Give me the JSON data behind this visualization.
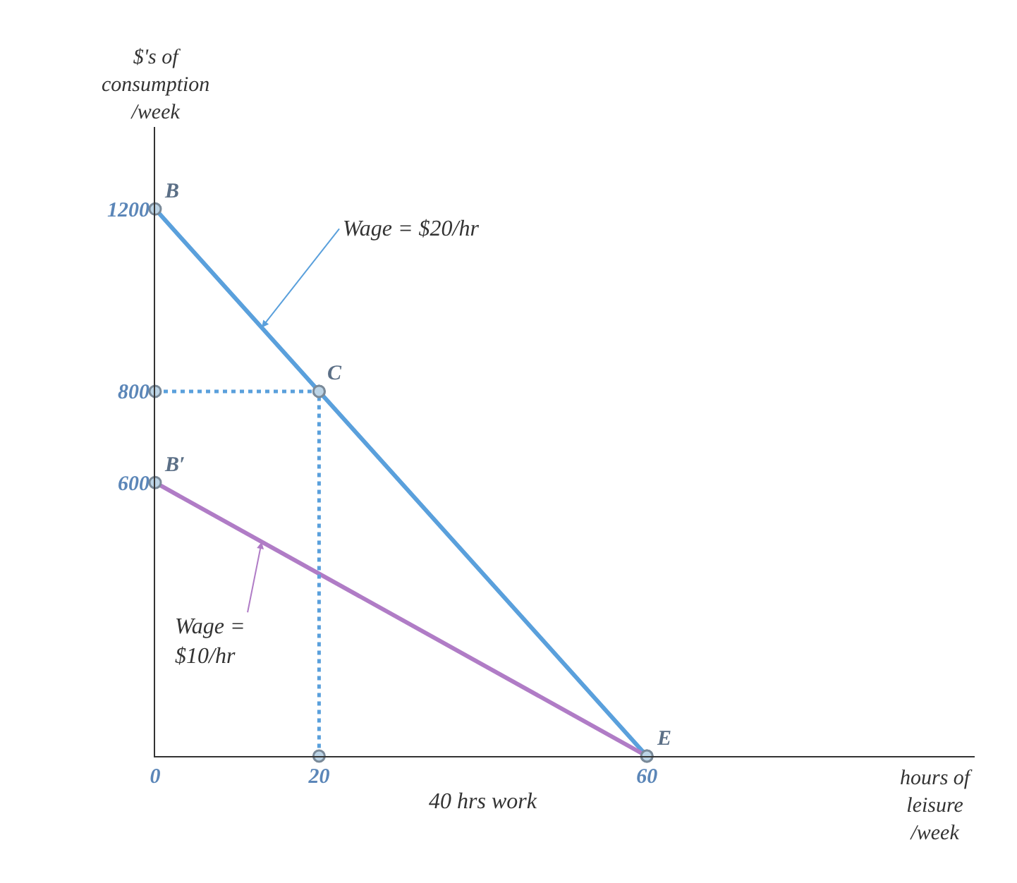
{
  "chart_data": {
    "type": "line",
    "xlabel": "hours of\nleisure\n/week",
    "ylabel": "$'s of\nconsumption\n/week",
    "x": [
      0,
      20,
      60
    ],
    "series": [
      {
        "color": "#5aa0dc",
        "values": [
          1200,
          800,
          0
        ]
      },
      {
        "color": "#b07cc6",
        "x": [
          0,
          60
        ],
        "values": [
          600,
          0
        ]
      },
      {
        "color": "#5aa0dc",
        "x": [
          0,
          20,
          20
        ],
        "values": [
          800,
          800,
          0
        ],
        "line_style": "dotted"
      }
    ],
    "annotations": [
      {
        "text": "B",
        "x": 0,
        "y": 1200
      },
      {
        "text": "C",
        "x": 20,
        "y": 800
      },
      {
        "text": "B′",
        "x": 0,
        "y": 600
      },
      {
        "text": "E",
        "x": 60,
        "y": 0
      },
      {
        "text": "Wage = $20/hr",
        "x": 13,
        "y": 940
      },
      {
        "text": "Wage =\n$10/hr",
        "x": 13,
        "y": 470
      },
      "40 hrs work"
    ],
    "marker": "circle",
    "line_style": "solid",
    "xlim": [
      0,
      100
    ],
    "ylim": [
      0,
      1380
    ],
    "xticks": [
      0,
      20,
      60
    ],
    "yticks": [
      600,
      800,
      1200
    ]
  }
}
